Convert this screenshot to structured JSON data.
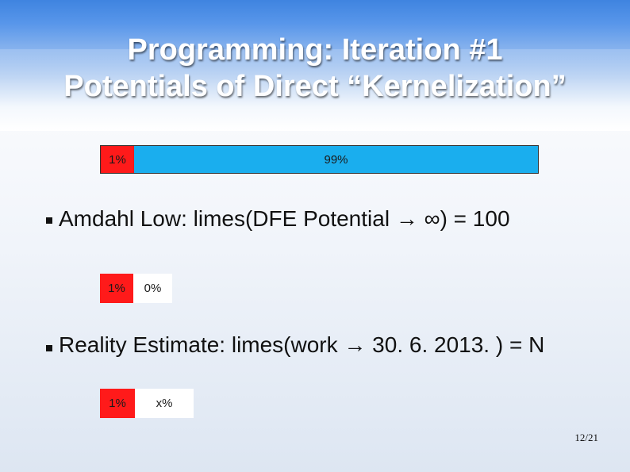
{
  "slide": {
    "title_line1": "Programming: Iteration #1",
    "title_line2": "Potentials of Direct “Kernelization”",
    "page_number": "12/21"
  },
  "bars": [
    {
      "left_label": "1%",
      "right_label": "99%",
      "left_fraction": 0.01,
      "right_fraction": 0.99
    },
    {
      "left_label": "1%",
      "right_label": "0%",
      "left_fraction": 0.01,
      "right_fraction": 0.0
    },
    {
      "left_label": "1%",
      "right_label": "x%"
    }
  ],
  "bullets": [
    {
      "text": "Amdahl Low: limes(DFE Potential → ∞) = 100"
    },
    {
      "text": "Reality Estimate: limes(work → 30. 6. 2013. ) = N"
    }
  ],
  "colors": {
    "header_blue": "#3f84e0",
    "bar_red": "#ff1a1a",
    "bar_blue": "#1aaeee",
    "bar_white": "#ffffff"
  }
}
